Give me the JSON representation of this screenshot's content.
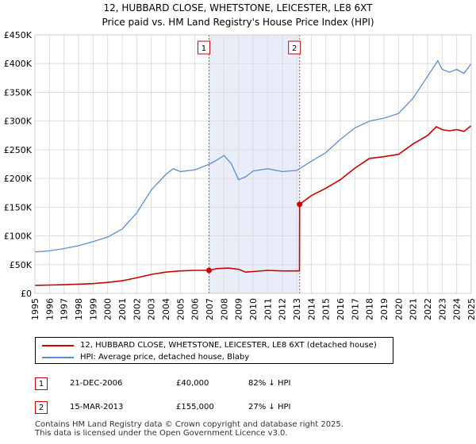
{
  "title_line1": "12, HUBBARD CLOSE, WHETSTONE, LEICESTER, LE8 6XT",
  "title_line2": "Price paid vs. HM Land Registry's House Price Index (HPI)",
  "chart_data": {
    "type": "line",
    "title": "12, HUBBARD CLOSE, WHETSTONE, LEICESTER, LE8 6XT — Price paid vs. HM Land Registry's House Price Index (HPI)",
    "xlabel": "",
    "ylabel": "",
    "xlim": [
      1995,
      2025
    ],
    "ylim": [
      0,
      450000
    ],
    "grid": true,
    "x_ticks": [
      "1995",
      "1996",
      "1997",
      "1998",
      "1999",
      "2000",
      "2001",
      "2002",
      "2003",
      "2004",
      "2005",
      "2006",
      "2007",
      "2008",
      "2009",
      "2010",
      "2011",
      "2012",
      "2013",
      "2014",
      "2015",
      "2016",
      "2017",
      "2018",
      "2019",
      "2020",
      "2021",
      "2022",
      "2023",
      "2024",
      "2025"
    ],
    "y_ticks": [
      {
        "value": 0,
        "label": "£0"
      },
      {
        "value": 50000,
        "label": "£50K"
      },
      {
        "value": 100000,
        "label": "£100K"
      },
      {
        "value": 150000,
        "label": "£150K"
      },
      {
        "value": 200000,
        "label": "£200K"
      },
      {
        "value": 250000,
        "label": "£250K"
      },
      {
        "value": 300000,
        "label": "£300K"
      },
      {
        "value": 350000,
        "label": "£350K"
      },
      {
        "value": 400000,
        "label": "£400K"
      },
      {
        "value": 450000,
        "label": "£450K"
      }
    ],
    "shaded_period": {
      "from": 2006.97,
      "to": 2013.2
    },
    "series": [
      {
        "name": "12, HUBBARD CLOSE, WHETSTONE, LEICESTER, LE8 6XT (detached house)",
        "color": "#cc0000",
        "x": [
          1995,
          1996,
          1997,
          1998,
          1999,
          2000,
          2001,
          2002,
          2003,
          2004,
          2005,
          2006,
          2006.97,
          2007.5,
          2008.3,
          2009,
          2009.5,
          2010,
          2011,
          2012,
          2013.19,
          2013.2,
          2014,
          2015,
          2016,
          2017,
          2018,
          2019,
          2020,
          2021,
          2022,
          2022.6,
          2023,
          2023.5,
          2024,
          2024.5,
          2025
        ],
        "values": [
          14000,
          14500,
          15000,
          16000,
          17000,
          19000,
          22000,
          27000,
          33000,
          37000,
          39000,
          40000,
          40000,
          43000,
          44000,
          42000,
          37000,
          38000,
          40000,
          39000,
          39000,
          155000,
          170000,
          183000,
          198000,
          218000,
          235000,
          238000,
          242000,
          260000,
          275000,
          290000,
          285000,
          283000,
          285000,
          282000,
          292000
        ]
      },
      {
        "name": "HPI: Average price, detached house, Blaby",
        "color": "#5b8fd1",
        "x": [
          1995,
          1996,
          1997,
          1998,
          1999,
          2000,
          2001,
          2002,
          2003,
          2004,
          2004.5,
          2005,
          2006,
          2007,
          2007.5,
          2008,
          2008.5,
          2009,
          2009.5,
          2010,
          2011,
          2012,
          2013,
          2014,
          2015,
          2016,
          2017,
          2018,
          2019,
          2020,
          2021,
          2022,
          2022.7,
          2023,
          2023.5,
          2024,
          2024.5,
          2025
        ],
        "values": [
          72000,
          74000,
          78000,
          83000,
          90000,
          98000,
          112000,
          140000,
          180000,
          207000,
          217000,
          212000,
          215000,
          225000,
          232000,
          240000,
          226000,
          198000,
          203000,
          213000,
          217000,
          212000,
          214000,
          230000,
          245000,
          268000,
          288000,
          300000,
          305000,
          313000,
          340000,
          378000,
          405000,
          390000,
          385000,
          390000,
          383000,
          400000
        ]
      }
    ],
    "markers": [
      {
        "label": "1",
        "x": 2006.97,
        "y": 40000
      },
      {
        "label": "2",
        "x": 2013.2,
        "y": 155000
      }
    ],
    "legend_position": "below"
  },
  "legend": {
    "items": [
      {
        "label": "12, HUBBARD CLOSE, WHETSTONE, LEICESTER, LE8 6XT (detached house)",
        "color": "#cc0000"
      },
      {
        "label": "HPI: Average price, detached house, Blaby",
        "color": "#5b8fd1"
      }
    ]
  },
  "transactions": [
    {
      "num": "1",
      "date": "21-DEC-2006",
      "price": "£40,000",
      "hpi": "82% ↓ HPI"
    },
    {
      "num": "2",
      "date": "15-MAR-2013",
      "price": "£155,000",
      "hpi": "27% ↓ HPI"
    }
  ],
  "footer": {
    "line1": "Contains HM Land Registry data © Crown copyright and database right 2025.",
    "line2": "This data is licensed under the Open Government Licence v3.0."
  }
}
